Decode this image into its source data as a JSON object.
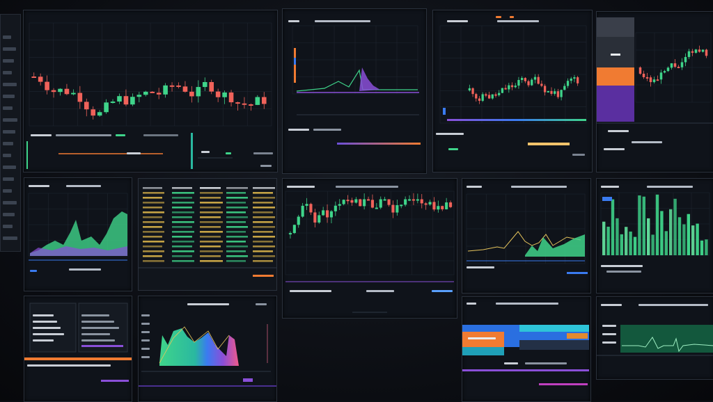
{
  "screen": {
    "background": "#0d1015"
  },
  "colors": {
    "up": "#3fd48a",
    "down": "#f0625a",
    "accent_orange": "#f07b32",
    "accent_purple": "#8a4fd8",
    "accent_blue": "#3a7bf0",
    "teal": "#2ab8a0"
  },
  "sidebar": {
    "items": 18
  },
  "panels": {
    "p1": {
      "title": "",
      "sub": "",
      "footer_a": "",
      "footer_b": ""
    },
    "p2": {
      "title": "",
      "sub": "",
      "footer_a": ""
    },
    "p3": {
      "title": "",
      "sub": "",
      "footer_a": ""
    },
    "p4": {
      "title": "",
      "sub": "",
      "footer_a": ""
    },
    "p5": {
      "title": "",
      "sub": "",
      "footer_a": ""
    },
    "p6": {
      "title": "",
      "sub": "",
      "footer_a": ""
    },
    "p7": {
      "title": "",
      "sub": "",
      "footer_a": "",
      "footer_b": "",
      "footer_c": ""
    },
    "p8": {
      "title": "",
      "sub": "",
      "footer_a": ""
    },
    "p9": {
      "title": "",
      "sub": "",
      "footer_a": ""
    },
    "p10": {
      "title": "",
      "sub": ""
    },
    "p11": {
      "title": "",
      "sub": ""
    },
    "p12": {
      "title": "",
      "sub": "",
      "footer_a": ""
    },
    "p13": {
      "title": "",
      "sub": "",
      "footer_a": ""
    }
  }
}
